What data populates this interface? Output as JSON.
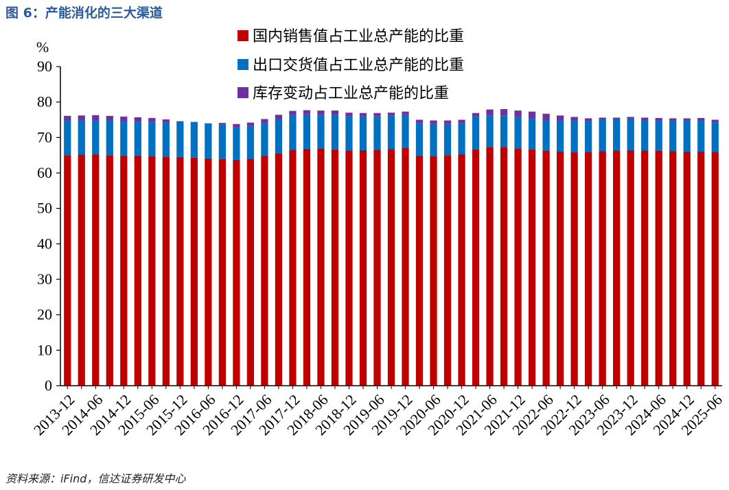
{
  "figure": {
    "title": "图 6：产能消化的三大渠道",
    "source": "资料来源：iFind，信达证券研发中心"
  },
  "chart_data": {
    "type": "bar",
    "stacked": true,
    "ylabel": "%",
    "ylim": [
      0,
      90
    ],
    "yticks": [
      0,
      10,
      20,
      30,
      40,
      50,
      60,
      70,
      80,
      90
    ],
    "grid": false,
    "legend_position": "top",
    "categories": [
      "2013-12",
      "2014-03",
      "2014-06",
      "2014-09",
      "2014-12",
      "2015-03",
      "2015-06",
      "2015-09",
      "2015-12",
      "2016-03",
      "2016-06",
      "2016-09",
      "2016-12",
      "2017-03",
      "2017-06",
      "2017-09",
      "2017-12",
      "2018-03",
      "2018-06",
      "2018-09",
      "2018-12",
      "2019-03",
      "2019-06",
      "2019-09",
      "2019-12",
      "2020-03",
      "2020-06",
      "2020-09",
      "2020-12",
      "2021-03",
      "2021-06",
      "2021-09",
      "2021-12",
      "2022-03",
      "2022-06",
      "2022-09",
      "2022-12",
      "2023-03",
      "2023-06",
      "2023-09",
      "2023-12",
      "2024-03",
      "2024-06",
      "2024-09",
      "2024-12",
      "2025-03",
      "2025-06"
    ],
    "x_tick_labels": [
      "2013-12",
      "2014-06",
      "2014-12",
      "2015-06",
      "2015-12",
      "2016-06",
      "2016-12",
      "2017-06",
      "2017-12",
      "2018-06",
      "2018-12",
      "2019-06",
      "2019-12",
      "2020-06",
      "2020-12",
      "2021-06",
      "2021-12",
      "2022-06",
      "2022-12",
      "2023-06",
      "2023-12",
      "2024-06",
      "2024-12",
      "2025-06"
    ],
    "series": [
      {
        "name": "国内销售值占工业总产能的比重",
        "color": "#c00000",
        "values": [
          65.0,
          65.2,
          65.3,
          65.0,
          64.9,
          64.9,
          64.8,
          64.6,
          64.5,
          64.3,
          64.1,
          63.9,
          63.7,
          64.0,
          64.9,
          65.5,
          66.5,
          66.8,
          66.9,
          66.6,
          66.3,
          66.4,
          66.5,
          66.7,
          67.1,
          64.9,
          64.8,
          65.0,
          65.3,
          66.6,
          67.3,
          67.3,
          66.9,
          66.6,
          66.2,
          66.0,
          65.8,
          65.9,
          66.1,
          66.3,
          66.4,
          66.3,
          66.2,
          66.1,
          66.0,
          66.0,
          65.9
        ]
      },
      {
        "name": "出口交货值占工业总产能的比重",
        "color": "#0070c0",
        "values": [
          9.9,
          9.7,
          9.6,
          9.8,
          9.7,
          9.6,
          9.6,
          9.6,
          10.1,
          10.1,
          9.9,
          9.7,
          9.1,
          9.2,
          9.1,
          9.6,
          9.8,
          9.7,
          9.5,
          9.8,
          9.6,
          9.5,
          9.5,
          9.5,
          9.4,
          9.2,
          9.0,
          8.8,
          8.8,
          9.3,
          8.9,
          8.9,
          8.9,
          8.8,
          8.6,
          8.7,
          8.9,
          8.7,
          9.0,
          8.8,
          8.9,
          8.6,
          8.7,
          8.6,
          8.8,
          8.7,
          8.4
        ]
      },
      {
        "name": "库存变动占工业总产能的比重",
        "color": "#7030a0",
        "values": [
          1.2,
          1.3,
          1.4,
          1.3,
          1.3,
          1.2,
          1.1,
          0.9,
          0.0,
          0.0,
          0.0,
          0.5,
          1.0,
          1.0,
          1.2,
          1.3,
          1.2,
          1.2,
          1.2,
          1.2,
          1.1,
          1.0,
          0.9,
          0.8,
          0.8,
          0.9,
          1.0,
          1.0,
          0.9,
          1.0,
          1.7,
          1.8,
          1.8,
          1.9,
          1.9,
          1.5,
          1.1,
          0.8,
          0.5,
          0.5,
          0.5,
          0.7,
          0.6,
          0.7,
          0.6,
          0.8,
          0.7
        ]
      }
    ]
  }
}
